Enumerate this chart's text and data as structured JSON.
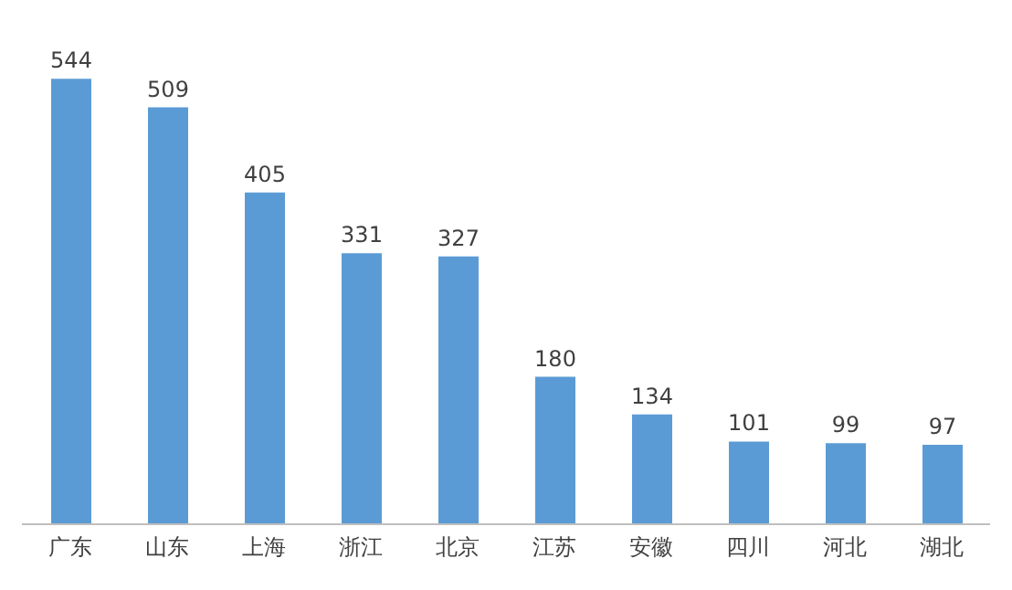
{
  "chart_data": {
    "type": "bar",
    "categories": [
      "广东",
      "山东",
      "上海",
      "浙江",
      "北京",
      "江苏",
      "安徽",
      "四川",
      "河北",
      "湖北"
    ],
    "values": [
      544,
      509,
      405,
      331,
      327,
      180,
      134,
      101,
      99,
      97
    ],
    "color": "#5b9bd5",
    "data_labels": true
  }
}
